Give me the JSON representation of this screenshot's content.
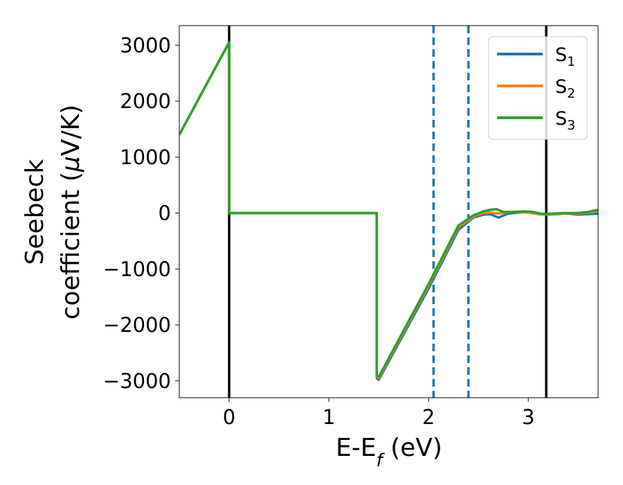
{
  "chart_data": {
    "type": "line",
    "xlabel": "E-E",
    "xlabel_sub": "f",
    "xlabel_unit": " (eV)",
    "ylabel_line1": "Seebeck",
    "ylabel_line2": "coefficient  (",
    "ylabel_mu": "μ",
    "ylabel_unit": "V/K)",
    "xlim": [
      -0.5,
      3.7
    ],
    "ylim": [
      -3300,
      3350
    ],
    "xticks": [
      0,
      1,
      2,
      3
    ],
    "yticks": [
      3000,
      2000,
      1000,
      0,
      -1000,
      -2000,
      -3000
    ],
    "xtick_labels": [
      "0",
      "1",
      "2",
      "3"
    ],
    "ytick_labels": [
      "3000",
      "2000",
      "1000",
      "0",
      "−1000",
      "−2000",
      "−3000"
    ],
    "vlines_solid": [
      0.0,
      3.18
    ],
    "vlines_dashed": [
      2.05,
      2.4
    ],
    "legend_position": "top-right",
    "series": [
      {
        "name": "S",
        "sub": "1",
        "color": "#1f77b4",
        "x": [
          -0.5,
          0.0,
          0.0,
          1.48,
          1.48,
          1.5,
          2.0,
          2.3,
          2.45,
          2.55,
          2.62,
          2.7,
          2.8,
          2.9,
          3.0,
          3.1,
          3.2,
          3.3,
          3.4,
          3.5,
          3.6,
          3.7
        ],
        "y": [
          1400,
          3050,
          0,
          0,
          -2950,
          -2980,
          -1350,
          -300,
          -80,
          -30,
          -20,
          -80,
          -10,
          10,
          20,
          -10,
          -20,
          -10,
          -10,
          -30,
          -20,
          -10
        ]
      },
      {
        "name": "S",
        "sub": "2",
        "color": "#ff7f0e",
        "x": [
          -0.5,
          0.0,
          0.0,
          1.48,
          1.48,
          1.5,
          2.0,
          2.3,
          2.45,
          2.55,
          2.62,
          2.7,
          2.8,
          2.9,
          3.0,
          3.1,
          3.2,
          3.3,
          3.4,
          3.5,
          3.6,
          3.7
        ],
        "y": [
          1400,
          3050,
          0,
          0,
          -2920,
          -2950,
          -1300,
          -250,
          -60,
          0,
          10,
          -10,
          20,
          20,
          10,
          -20,
          -30,
          -20,
          0,
          -10,
          10,
          30
        ]
      },
      {
        "name": "S",
        "sub": "3",
        "color": "#2ca02c",
        "x": [
          -0.5,
          0.0,
          0.0,
          1.48,
          1.48,
          1.5,
          2.0,
          2.3,
          2.45,
          2.55,
          2.62,
          2.68,
          2.75,
          2.85,
          2.95,
          3.05,
          3.15,
          3.25,
          3.35,
          3.5,
          3.6,
          3.7
        ],
        "y": [
          1400,
          3050,
          0,
          0,
          -2900,
          -2930,
          -1270,
          -220,
          -40,
          30,
          60,
          70,
          20,
          20,
          30,
          20,
          -20,
          -10,
          0,
          0,
          20,
          60
        ]
      }
    ]
  }
}
